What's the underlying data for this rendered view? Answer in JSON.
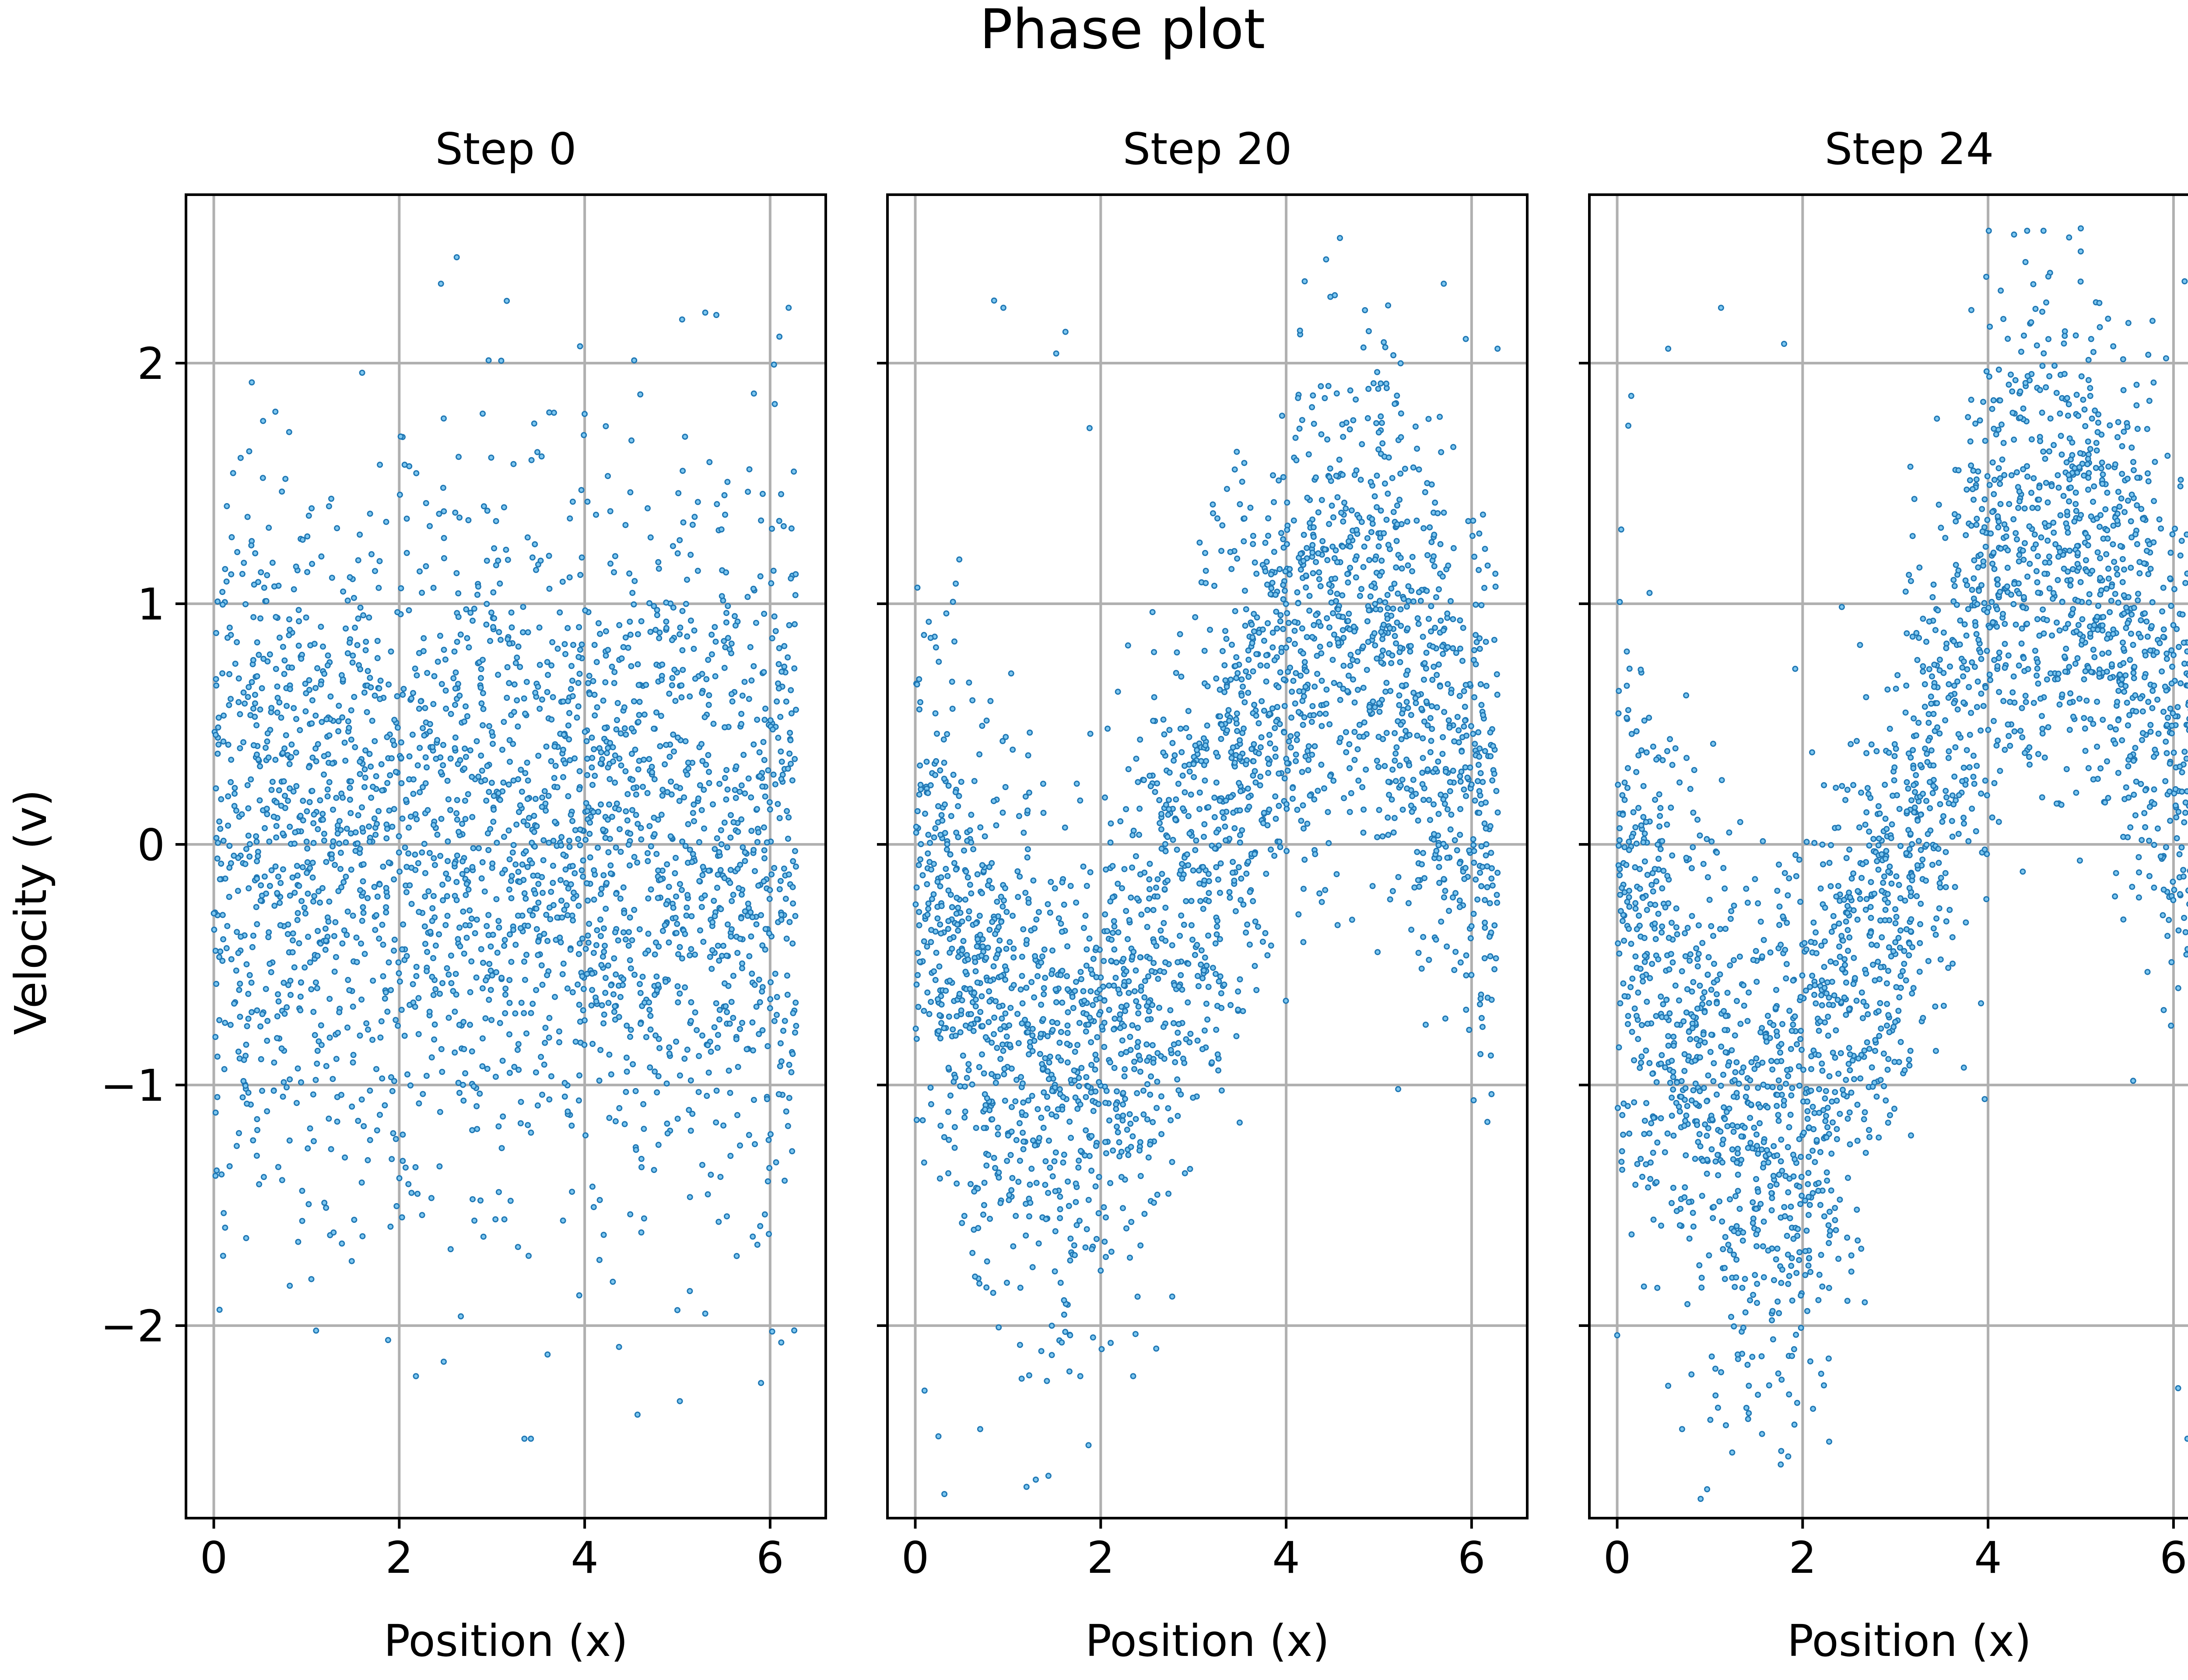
{
  "figure": {
    "title": "Phase plot",
    "ylabel": "Velocity (v)"
  },
  "colors": {
    "point_face": "#7fc8f0",
    "point_edge": "#1f77b4",
    "grid": "#b0b0b0",
    "axes": "#000000"
  },
  "chart_data": [
    {
      "type": "scatter",
      "title": "Step 0",
      "xlabel": "Position (x)",
      "ylabel": "Velocity (v)",
      "xlim": [
        -0.3,
        6.6
      ],
      "ylim": [
        -2.8,
        2.7
      ],
      "xticks": [
        0,
        2,
        4,
        6
      ],
      "yticks": [
        -2,
        -1,
        0,
        1,
        2
      ],
      "grid": true,
      "legend": "none",
      "point_count_estimate": 2500,
      "pattern": "points spread roughly uniformly in x over 0 to 2π; velocities roughly Gaussian around 0 with std ≈ 0.75, densest near x ≈ 3",
      "sample_points": [
        [
          2.62,
          2.44
        ],
        [
          2.45,
          2.33
        ],
        [
          3.95,
          2.07
        ],
        [
          6.2,
          2.23
        ],
        [
          5.3,
          2.21
        ],
        [
          5.42,
          2.2
        ],
        [
          6.1,
          2.11
        ],
        [
          0.41,
          1.92
        ],
        [
          1.6,
          1.96
        ],
        [
          4.6,
          1.87
        ],
        [
          2.48,
          1.77
        ],
        [
          2.9,
          1.79
        ],
        [
          3.1,
          2.01
        ],
        [
          6.05,
          1.83
        ],
        [
          3.35,
          -2.47
        ],
        [
          3.42,
          -2.47
        ],
        [
          4.57,
          -2.37
        ],
        [
          2.18,
          -2.21
        ],
        [
          2.48,
          -2.15
        ],
        [
          3.6,
          -2.12
        ],
        [
          1.88,
          -2.06
        ],
        [
          6.12,
          -2.07
        ],
        [
          6.26,
          -2.02
        ],
        [
          0.1,
          -1.71
        ],
        [
          5.3,
          -1.95
        ]
      ]
    },
    {
      "type": "scatter",
      "title": "Step 20",
      "xlabel": "Position (x)",
      "xlim": [
        -0.3,
        6.6
      ],
      "ylim": [
        -2.8,
        2.7
      ],
      "xticks": [
        0,
        2,
        4,
        6
      ],
      "yticks": [
        -2,
        -1,
        0,
        1,
        2
      ],
      "grid": true,
      "legend": "none",
      "point_count_estimate": 2500,
      "pattern": "distribution sheared into a tilted band: velocity mean rises with x from about -1 near x ≈ 2 to about +1 near x ≈ 4.5",
      "sample_points": [
        [
          4.58,
          2.52
        ],
        [
          4.2,
          2.34
        ],
        [
          0.85,
          2.26
        ],
        [
          0.95,
          2.23
        ],
        [
          1.62,
          2.13
        ],
        [
          1.52,
          2.04
        ],
        [
          5.7,
          2.33
        ],
        [
          4.85,
          2.22
        ],
        [
          6.28,
          2.06
        ],
        [
          1.88,
          1.73
        ],
        [
          1.2,
          -2.67
        ],
        [
          1.3,
          -2.64
        ],
        [
          0.1,
          -2.27
        ],
        [
          0.25,
          -2.46
        ],
        [
          0.7,
          -2.43
        ],
        [
          1.42,
          -2.23
        ],
        [
          2.35,
          -2.21
        ],
        [
          1.78,
          -2.21
        ],
        [
          1.58,
          -2.07
        ],
        [
          1.67,
          -2.04
        ]
      ]
    },
    {
      "type": "scatter",
      "title": "Step 24",
      "xlabel": "Position (x)",
      "xlim": [
        -0.3,
        6.6
      ],
      "ylim": [
        -2.8,
        2.7
      ],
      "xticks": [
        0,
        2,
        4,
        6
      ],
      "yticks": [
        -2,
        -1,
        0,
        1,
        2
      ],
      "grid": true,
      "legend": "none",
      "point_count_estimate": 2500,
      "pattern": "stronger shear: velocity mean rises steeply with x, band from about -1.2 near x ≈ 1.8 to about +1.2 near x ≈ 4.5",
      "sample_points": [
        [
          5.0,
          2.56
        ],
        [
          4.65,
          2.36
        ],
        [
          5.2,
          2.25
        ],
        [
          1.12,
          2.23
        ],
        [
          6.12,
          2.34
        ],
        [
          0.12,
          1.74
        ],
        [
          1.8,
          2.08
        ],
        [
          0.55,
          2.06
        ],
        [
          5.92,
          2.02
        ],
        [
          6.22,
          2.0
        ],
        [
          0.9,
          -2.72
        ],
        [
          0.97,
          -2.68
        ],
        [
          0.0,
          -2.04
        ],
        [
          0.55,
          -2.25
        ],
        [
          0.7,
          -2.43
        ],
        [
          2.2,
          -2.2
        ],
        [
          1.3,
          -2.12
        ],
        [
          1.42,
          -2.25
        ],
        [
          6.15,
          -2.47
        ],
        [
          6.05,
          -2.26
        ]
      ]
    }
  ]
}
